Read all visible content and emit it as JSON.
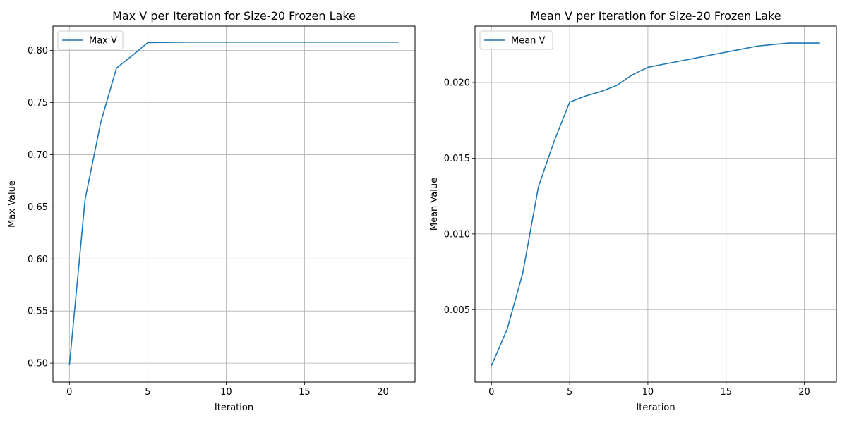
{
  "chart_data": [
    {
      "type": "line",
      "title": "Max V per Iteration for Size-20 Frozen Lake",
      "xlabel": "Iteration",
      "ylabel": "Max Value",
      "xlim": [
        -1.05,
        22.05
      ],
      "ylim": [
        0.4818,
        0.8234
      ],
      "xticks": [
        0,
        5,
        10,
        15,
        20
      ],
      "xtick_labels": [
        "0",
        "5",
        "10",
        "15",
        "20"
      ],
      "yticks": [
        0.5,
        0.55,
        0.6,
        0.65,
        0.7,
        0.75,
        0.8
      ],
      "ytick_labels": [
        "0.50",
        "0.55",
        "0.60",
        "0.65",
        "0.70",
        "0.75",
        "0.80"
      ],
      "grid": true,
      "legend_position": "upper left",
      "series": [
        {
          "name": "Max V",
          "color": "#1f77b4",
          "x": [
            0,
            1,
            2,
            3,
            4,
            5,
            6,
            7,
            8,
            9,
            10,
            11,
            12,
            13,
            14,
            15,
            16,
            17,
            18,
            19,
            20,
            21
          ],
          "values": [
            0.498,
            0.657,
            0.731,
            0.783,
            0.795,
            0.8075,
            0.8077,
            0.8079,
            0.808,
            0.808,
            0.808,
            0.808,
            0.808,
            0.808,
            0.808,
            0.808,
            0.808,
            0.808,
            0.808,
            0.808,
            0.808,
            0.808
          ]
        }
      ]
    },
    {
      "type": "line",
      "title": "Mean V per Iteration for Size-20 Frozen Lake",
      "xlabel": "Iteration",
      "ylabel": "Mean Value",
      "xlim": [
        -1.05,
        22.05
      ],
      "ylim": [
        0.00022,
        0.02372
      ],
      "xticks": [
        0,
        5,
        10,
        15,
        20
      ],
      "xtick_labels": [
        "0",
        "5",
        "10",
        "15",
        "20"
      ],
      "yticks": [
        0.005,
        0.01,
        0.015,
        0.02
      ],
      "ytick_labels": [
        "0.005",
        "0.010",
        "0.015",
        "0.020"
      ],
      "grid": true,
      "legend_position": "upper left",
      "series": [
        {
          "name": "Mean V",
          "color": "#1f77b4",
          "x": [
            0,
            1,
            2,
            3,
            4,
            5,
            6,
            7,
            8,
            9,
            10,
            11,
            12,
            13,
            14,
            15,
            16,
            17,
            18,
            19,
            20,
            21
          ],
          "values": [
            0.0013,
            0.0037,
            0.0074,
            0.0131,
            0.0161,
            0.0187,
            0.0191,
            0.0194,
            0.0198,
            0.0205,
            0.021,
            0.0212,
            0.0214,
            0.0216,
            0.0218,
            0.022,
            0.0222,
            0.0224,
            0.0225,
            0.0226,
            0.0226,
            0.0226
          ]
        }
      ]
    }
  ]
}
